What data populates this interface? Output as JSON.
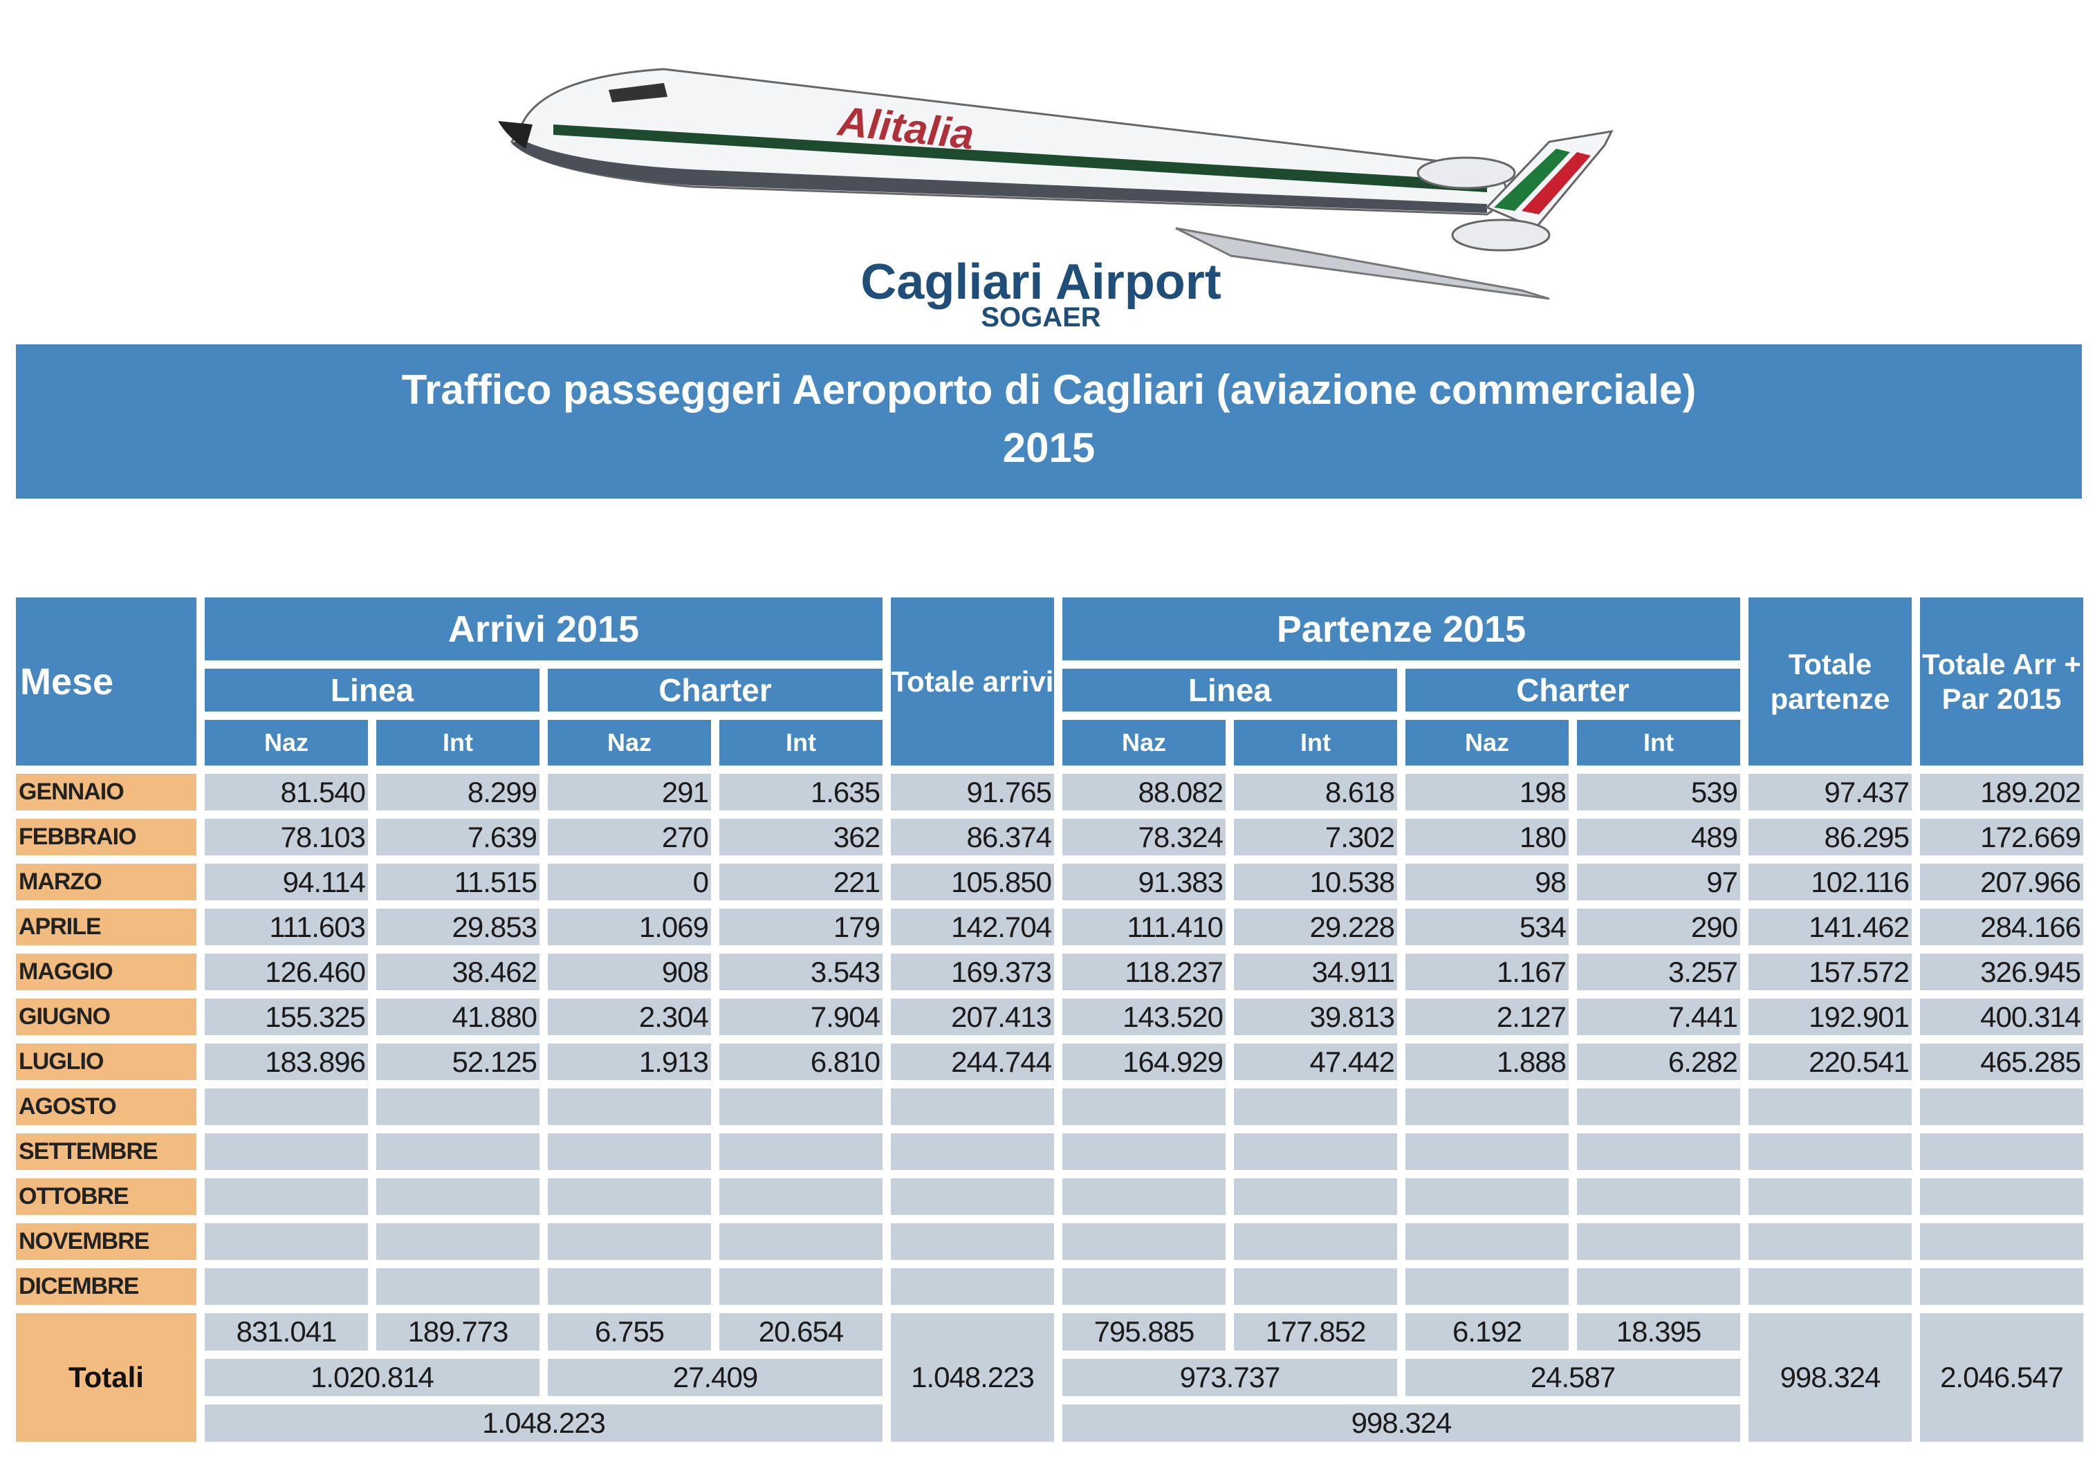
{
  "logo": {
    "airline": "Alitalia",
    "airport": "Cagliari Airport",
    "operator": "SOGAER"
  },
  "banner": {
    "title": "Traffico passeggeri Aeroporto di Cagliari (aviazione commerciale)",
    "year": "2015"
  },
  "headers": {
    "mese": "Mese",
    "arrivi": "Arrivi 2015",
    "partenze": "Partenze 2015",
    "linea": "Linea",
    "charter": "Charter",
    "naz": "Naz",
    "int": "Int",
    "totale_arrivi": "Totale arrivi",
    "totale_partenze": "Totale partenze",
    "totale_arr_par": "Totale Arr + Par 2015"
  },
  "rows": [
    {
      "month": "GENNAIO",
      "values": [
        "81.540",
        "8.299",
        "291",
        "1.635",
        "91.765",
        "88.082",
        "8.618",
        "198",
        "539",
        "97.437",
        "189.202"
      ]
    },
    {
      "month": "FEBBRAIO",
      "values": [
        "78.103",
        "7.639",
        "270",
        "362",
        "86.374",
        "78.324",
        "7.302",
        "180",
        "489",
        "86.295",
        "172.669"
      ]
    },
    {
      "month": "MARZO",
      "values": [
        "94.114",
        "11.515",
        "0",
        "221",
        "105.850",
        "91.383",
        "10.538",
        "98",
        "97",
        "102.116",
        "207.966"
      ]
    },
    {
      "month": "APRILE",
      "values": [
        "111.603",
        "29.853",
        "1.069",
        "179",
        "142.704",
        "111.410",
        "29.228",
        "534",
        "290",
        "141.462",
        "284.166"
      ]
    },
    {
      "month": "MAGGIO",
      "values": [
        "126.460",
        "38.462",
        "908",
        "3.543",
        "169.373",
        "118.237",
        "34.911",
        "1.167",
        "3.257",
        "157.572",
        "326.945"
      ]
    },
    {
      "month": "GIUGNO",
      "values": [
        "155.325",
        "41.880",
        "2.304",
        "7.904",
        "207.413",
        "143.520",
        "39.813",
        "2.127",
        "7.441",
        "192.901",
        "400.314"
      ]
    },
    {
      "month": "LUGLIO",
      "values": [
        "183.896",
        "52.125",
        "1.913",
        "6.810",
        "244.744",
        "164.929",
        "47.442",
        "1.888",
        "6.282",
        "220.541",
        "465.285"
      ]
    },
    {
      "month": "AGOSTO",
      "values": [
        "",
        "",
        "",
        "",
        "",
        "",
        "",
        "",
        "",
        "",
        ""
      ]
    },
    {
      "month": "SETTEMBRE",
      "values": [
        "",
        "",
        "",
        "",
        "",
        "",
        "",
        "",
        "",
        "",
        ""
      ]
    },
    {
      "month": "OTTOBRE",
      "values": [
        "",
        "",
        "",
        "",
        "",
        "",
        "",
        "",
        "",
        "",
        ""
      ]
    },
    {
      "month": "NOVEMBRE",
      "values": [
        "",
        "",
        "",
        "",
        "",
        "",
        "",
        "",
        "",
        "",
        ""
      ]
    },
    {
      "month": "DICEMBRE",
      "values": [
        "",
        "",
        "",
        "",
        "",
        "",
        "",
        "",
        "",
        "",
        ""
      ]
    }
  ],
  "totals": {
    "label": "Totali",
    "arr_detail": [
      "831.041",
      "189.773",
      "6.755",
      "20.654"
    ],
    "par_detail": [
      "795.885",
      "177.852",
      "6.192",
      "18.395"
    ],
    "arr_linea": "1.020.814",
    "arr_charter": "27.409",
    "par_linea": "973.737",
    "par_charter": "24.587",
    "arr_total": "1.048.223",
    "par_total": "998.324",
    "totale_arrivi": "1.048.223",
    "totale_partenze": "998.324",
    "totale_arr_par": "2.046.547"
  },
  "colors": {
    "header_blue": "#4687c0",
    "cell_gray": "#c5d0da",
    "month_orange": "#f2bc80",
    "logo_navy": "#1f4e79"
  }
}
